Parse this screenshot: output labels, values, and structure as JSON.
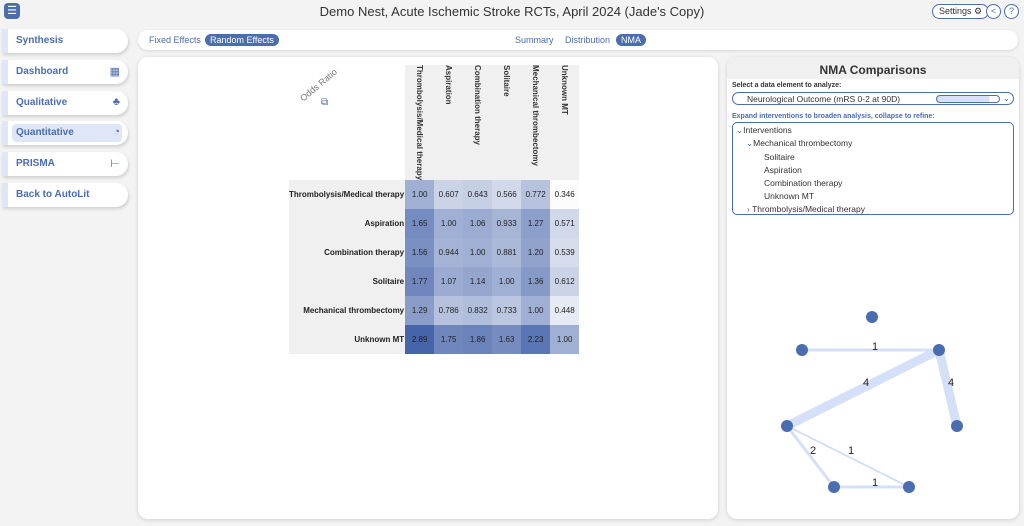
{
  "header": {
    "title": "Demo Nest, Acute Ischemic Stroke RCTs, April 2024 (Jade's Copy)",
    "settings_label": "Settings",
    "menu_icon": "hamburger-icon"
  },
  "sidebar": [
    {
      "label": "Synthesis",
      "icon": ""
    },
    {
      "label": "Dashboard",
      "icon": "▦"
    },
    {
      "label": "Qualitative",
      "icon": "♣"
    },
    {
      "label": "Quantitative",
      "icon": "◔"
    },
    {
      "label": "PRISMA",
      "icon": "⊢"
    },
    {
      "label": "Back to AutoLit",
      "icon": ""
    }
  ],
  "tabs": {
    "effects": [
      "Fixed Effects",
      "Random Effects"
    ],
    "views": [
      "Summary",
      "Distribution",
      "NMA"
    ]
  },
  "matrix": {
    "metric": "Odds Ratio",
    "columns": [
      "Thrombolysis/Medical therapy",
      "Aspiration",
      "Combination therapy",
      "Solitaire",
      "Mechanical thrombectomy",
      "Unknown MT"
    ],
    "rows": [
      {
        "label": "Thrombolysis/Medical therapy",
        "values": [
          "1.00",
          "0.607",
          "0.643",
          "0.566",
          "0.772",
          "0.346"
        ]
      },
      {
        "label": "Aspiration",
        "values": [
          "1.65",
          "1.00",
          "1.06",
          "0.933",
          "1.27",
          "0.571"
        ]
      },
      {
        "label": "Combination therapy",
        "values": [
          "1.56",
          "0.944",
          "1.00",
          "0.881",
          "1.20",
          "0.539"
        ]
      },
      {
        "label": "Solitaire",
        "values": [
          "1.77",
          "1.07",
          "1.14",
          "1.00",
          "1.36",
          "0.612"
        ]
      },
      {
        "label": "Mechanical thrombectomy",
        "values": [
          "1.29",
          "0.786",
          "0.832",
          "0.733",
          "1.00",
          "0.448"
        ]
      },
      {
        "label": "Unknown MT",
        "values": [
          "2.89",
          "1.75",
          "1.86",
          "1.63",
          "2.23",
          "1.00"
        ]
      }
    ]
  },
  "nma": {
    "title": "NMA Comparisons",
    "select_label": "Select a data element to analyze:",
    "selected": "Neurological Outcome (mRS 0-2 at 90D)",
    "expand_label": "Expand interventions to broaden analysis, collapse to refine:",
    "tree": [
      "Interventions",
      "Mechanical thrombectomy",
      "Solitaire",
      "Aspiration",
      "Combination therapy",
      "Unknown MT",
      "Thrombolysis/Medical therapy"
    ],
    "edges": [
      {
        "w": "1"
      },
      {
        "w": "4"
      },
      {
        "w": "4"
      },
      {
        "w": "2"
      },
      {
        "w": "1"
      },
      {
        "w": "1"
      }
    ]
  },
  "colors": {
    "accent": "#4a6db0"
  }
}
